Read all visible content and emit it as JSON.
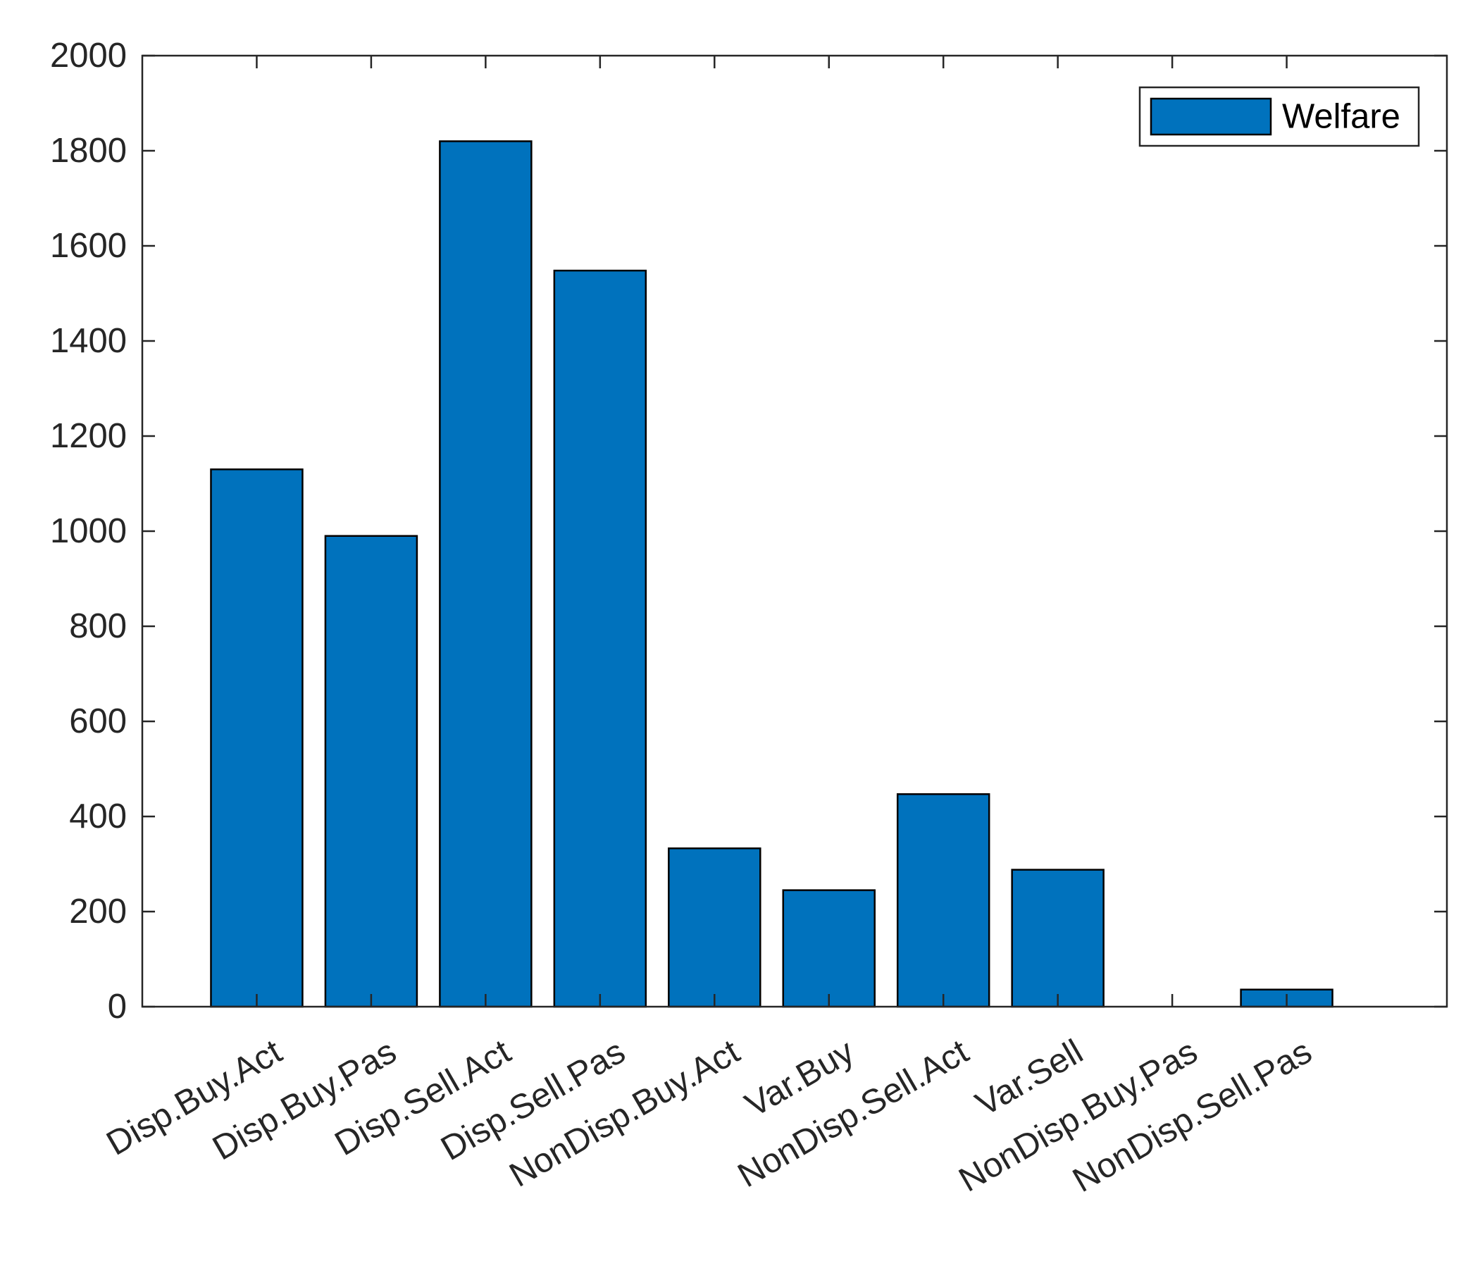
{
  "chart_data": {
    "type": "bar",
    "categories": [
      "Disp.Buy.Act",
      "Disp.Buy.Pas",
      "Disp.Sell.Act",
      "Disp.Sell.Pas",
      "NonDisp.Buy.Act",
      "Var.Buy",
      "NonDisp.Sell.Act",
      "Var.Sell",
      "NonDisp.Buy.Pas",
      "NonDisp.Sell.Pas"
    ],
    "series": [
      {
        "name": "Welfare",
        "color": "#0072BD",
        "values": [
          1130,
          990,
          1820,
          1548,
          333,
          245,
          447,
          288,
          0,
          36
        ]
      }
    ],
    "y_ticks": [
      0,
      200,
      400,
      600,
      800,
      1000,
      1200,
      1400,
      1600,
      1800,
      2000
    ],
    "ylim": [
      0,
      2000
    ],
    "x_range": [
      0,
      11.4
    ],
    "grid": false,
    "legend_position": "top-right",
    "title": "",
    "xlabel": "",
    "ylabel": ""
  }
}
